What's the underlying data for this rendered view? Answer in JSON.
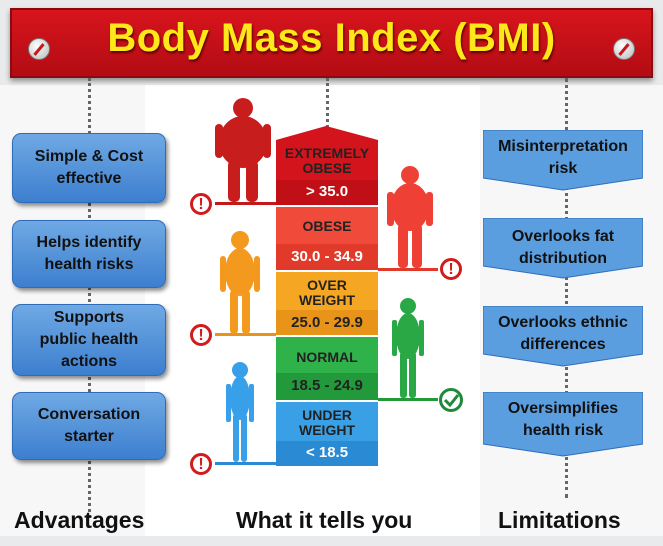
{
  "title": "Body Mass Index (BMI)",
  "advantages": {
    "heading": "Advantages",
    "items": [
      "Simple & Cost effective",
      "Helps identify health risks",
      "Supports public health actions",
      "Conversation starter"
    ]
  },
  "center": {
    "heading": "What it tells you",
    "categories": [
      {
        "name": "EXTREMELY OBESE",
        "range": "> 35.0",
        "color": "#d3141c",
        "accent": "#c00f16"
      },
      {
        "name": "OBESE",
        "range": "30.0 - 34.9",
        "color": "#ef4a3a",
        "accent": "#e23a2a"
      },
      {
        "name": "OVER WEIGHT",
        "range": "25.0 - 29.9",
        "color": "#f5a623",
        "accent": "#e8931a"
      },
      {
        "name": "NORMAL",
        "range": "18.5 - 24.9",
        "color": "#2fb24a",
        "accent": "#229a3c"
      },
      {
        "name": "UNDER WEIGHT",
        "range": "< 18.5",
        "color": "#3aa0e6",
        "accent": "#2a8ad3"
      }
    ]
  },
  "limitations": {
    "heading": "Limitations",
    "items": [
      "Misinterpretation risk",
      "Overlooks fat distribution",
      "Overlooks ethnic differences",
      "Oversimplifies health risk"
    ]
  }
}
